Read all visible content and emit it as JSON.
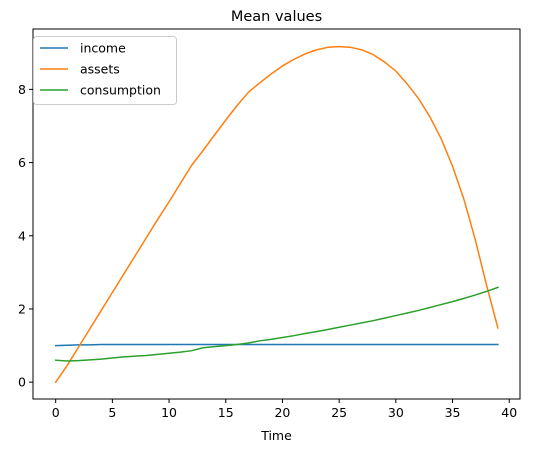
{
  "chart_data": {
    "type": "line",
    "title": "Mean values",
    "xlabel": "Time",
    "ylabel": "",
    "xlim": [
      -2.0,
      40.95
    ],
    "ylim": [
      -0.46,
      9.65
    ],
    "xticks": [
      0,
      5,
      10,
      15,
      20,
      25,
      30,
      35,
      40
    ],
    "yticks": [
      0,
      2,
      4,
      6,
      8
    ],
    "grid": false,
    "legend_position": "top-left",
    "x": [
      0,
      1,
      2,
      3,
      4,
      5,
      6,
      7,
      8,
      9,
      10,
      11,
      12,
      13,
      14,
      15,
      16,
      17,
      18,
      19,
      20,
      21,
      22,
      23,
      24,
      25,
      26,
      27,
      28,
      29,
      30,
      31,
      32,
      33,
      34,
      35,
      36,
      37,
      38,
      39
    ],
    "series": [
      {
        "name": "income",
        "color": "#1f77b4",
        "values": [
          1.0,
          1.01,
          1.02,
          1.02,
          1.03,
          1.03,
          1.03,
          1.03,
          1.03,
          1.03,
          1.03,
          1.03,
          1.03,
          1.03,
          1.03,
          1.03,
          1.03,
          1.03,
          1.03,
          1.03,
          1.03,
          1.03,
          1.03,
          1.03,
          1.03,
          1.03,
          1.03,
          1.03,
          1.03,
          1.03,
          1.03,
          1.03,
          1.03,
          1.03,
          1.03,
          1.03,
          1.03,
          1.03,
          1.03,
          1.03
        ]
      },
      {
        "name": "assets",
        "color": "#ff7f0e",
        "values": [
          0.0,
          0.45,
          0.95,
          1.45,
          1.95,
          2.45,
          2.95,
          3.45,
          3.95,
          4.45,
          4.93,
          5.43,
          5.93,
          6.33,
          6.75,
          7.16,
          7.56,
          7.92,
          8.18,
          8.42,
          8.64,
          8.82,
          8.97,
          9.08,
          9.15,
          9.17,
          9.15,
          9.08,
          8.95,
          8.75,
          8.5,
          8.15,
          7.75,
          7.25,
          6.65,
          5.9,
          5.0,
          3.9,
          2.65,
          1.48
        ]
      },
      {
        "name": "consumption",
        "color": "#2ca02c",
        "values": [
          0.6,
          0.58,
          0.59,
          0.61,
          0.63,
          0.66,
          0.69,
          0.71,
          0.73,
          0.76,
          0.79,
          0.82,
          0.86,
          0.94,
          0.97,
          1.0,
          1.03,
          1.07,
          1.13,
          1.17,
          1.22,
          1.27,
          1.33,
          1.38,
          1.44,
          1.5,
          1.56,
          1.62,
          1.68,
          1.75,
          1.82,
          1.89,
          1.96,
          2.04,
          2.12,
          2.2,
          2.29,
          2.38,
          2.48,
          2.59
        ]
      }
    ]
  }
}
